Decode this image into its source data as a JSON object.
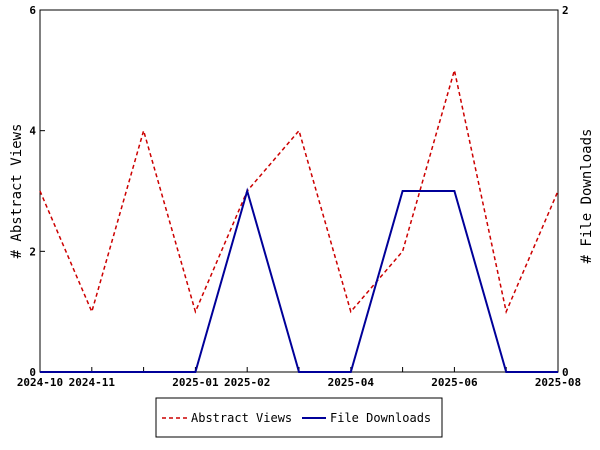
{
  "chart_data": {
    "type": "line",
    "x_ticks": [
      "2024-10",
      "2024-11",
      "",
      "2025-01",
      "2025-02",
      "",
      "2025-04",
      "",
      "2025-06",
      "",
      "2025-08"
    ],
    "x": [
      "2024-10",
      "2024-11",
      "2024-12",
      "2025-01",
      "2025-02",
      "2025-03",
      "2025-04",
      "2025-05",
      "2025-06",
      "2025-07",
      "2025-08"
    ],
    "series": [
      {
        "name": "Abstract Views",
        "axis": "left",
        "color": "#cc0000",
        "dash": true,
        "values": [
          3,
          1,
          4,
          1,
          3,
          4,
          1,
          2,
          5,
          1,
          3
        ]
      },
      {
        "name": "File Downloads",
        "axis": "right",
        "color": "#000099",
        "dash": false,
        "values": [
          0,
          0,
          0,
          0,
          1,
          0,
          0,
          1,
          1,
          0,
          0
        ]
      }
    ],
    "ylabel": "# Abstract Views",
    "ylabel_right": "# File Downloads",
    "ylim": [
      0,
      6
    ],
    "ylim_right": [
      0,
      2
    ],
    "y_ticks": [
      "0",
      "2",
      "4",
      "6"
    ],
    "y_ticks_right": [
      "0",
      "2"
    ],
    "grid": false,
    "legend_position": "bottom"
  }
}
